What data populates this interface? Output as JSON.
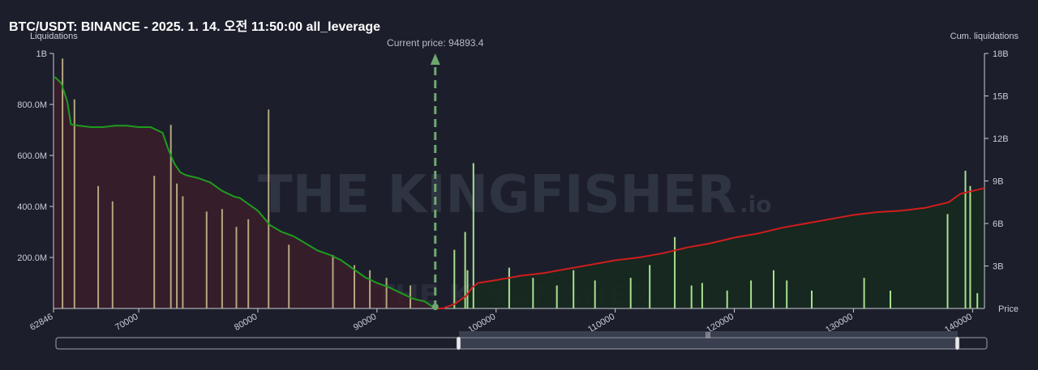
{
  "title": "BTC/USDT: BINANCE - 2025. 1. 14. 오전 11:50:00 all_leverage",
  "watermark": "THE KINGFISHER",
  "watermark_suffix": ".io",
  "colors": {
    "background": "#1c1f2b",
    "short_cum_line": "#d11d1d",
    "long_cum_line": "#1f9b1f",
    "long_fill": "#3a1d2a",
    "short_fill": "#16291f",
    "long_bars": "#b5a67f",
    "short_bars": "#a8e08e",
    "price_marker": "#6fa86f"
  },
  "chart_data": {
    "type": "bar",
    "x_range": [
      62846,
      141000
    ],
    "xticks": [
      62846,
      70000,
      80000,
      90000,
      100000,
      110000,
      120000,
      130000,
      140000
    ],
    "xtick_labels": [
      "62846",
      "70000",
      "80000",
      "90000",
      "100000",
      "110000",
      "120000",
      "130000",
      "140000"
    ],
    "xlabel": "Price",
    "ylabel_left": "Liquidations",
    "ylabel_right": "Cum. liquidations",
    "ylim_left": [
      0,
      1000000000
    ],
    "yticks_left": [
      200000000,
      400000000,
      600000000,
      800000000,
      1000000000
    ],
    "ytick_labels_left": [
      "200.0M",
      "400.0M",
      "600.0M",
      "800.0M",
      "1B"
    ],
    "ylim_right": [
      0,
      18000000000
    ],
    "yticks_right": [
      3000000000,
      6000000000,
      9000000000,
      12000000000,
      15000000000,
      18000000000
    ],
    "ytick_labels_right": [
      "3B",
      "6B",
      "9B",
      "12B",
      "15B",
      "18B"
    ],
    "current_price": 94893.4,
    "current_price_label": "Current price: 94893.4",
    "long_cum_series": {
      "x": [
        62846,
        63000,
        63500,
        64000,
        64300,
        65000,
        66000,
        67000,
        68000,
        69000,
        70000,
        71000,
        72000,
        72500,
        73000,
        73500,
        74000,
        75000,
        76000,
        77000,
        78000,
        78500,
        79000,
        80000,
        81000,
        82000,
        83000,
        84000,
        85000,
        86000,
        87000,
        88000,
        89000,
        90000,
        91000,
        92000,
        93000,
        94000,
        94893
      ],
      "y": [
        16300000000,
        16300000000,
        15900000000,
        14600000000,
        13000000000,
        12900000000,
        12800000000,
        12800000000,
        12900000000,
        12900000000,
        12800000000,
        12800000000,
        12400000000,
        11200000000,
        10200000000,
        9600000000,
        9400000000,
        9200000000,
        8900000000,
        8300000000,
        7900000000,
        7800000000,
        7500000000,
        6900000000,
        5900000000,
        5400000000,
        5100000000,
        4600000000,
        4100000000,
        3800000000,
        3400000000,
        2800000000,
        2200000000,
        1800000000,
        1500000000,
        1100000000,
        700000000,
        500000000,
        0
      ]
    },
    "short_cum_series": {
      "x": [
        94893,
        95500,
        96500,
        97000,
        97500,
        98000,
        98500,
        100000,
        102000,
        104000,
        106000,
        108000,
        110000,
        112000,
        114000,
        116000,
        118000,
        120000,
        122000,
        124000,
        126000,
        128000,
        130000,
        132000,
        134000,
        136000,
        137000,
        138000,
        139000,
        140000,
        141000
      ],
      "y": [
        0,
        0,
        300000000,
        600000000,
        900000000,
        1500000000,
        1800000000,
        2000000000,
        2300000000,
        2500000000,
        2800000000,
        3100000000,
        3400000000,
        3600000000,
        3900000000,
        4300000000,
        4600000000,
        5000000000,
        5300000000,
        5700000000,
        6000000000,
        6300000000,
        6600000000,
        6800000000,
        6900000000,
        7100000000,
        7300000000,
        7500000000,
        8100000000,
        8300000000,
        8500000000
      ]
    },
    "long_bars": {
      "x": [
        63600,
        64600,
        66600,
        67800,
        71300,
        72700,
        73200,
        73700,
        75700,
        77000,
        78200,
        79200,
        80900,
        82600,
        86300,
        88100,
        89400,
        90800,
        92800
      ],
      "values": [
        980000000,
        820000000,
        480000000,
        420000000,
        520000000,
        720000000,
        490000000,
        440000000,
        380000000,
        390000000,
        320000000,
        350000000,
        780000000,
        250000000,
        210000000,
        170000000,
        150000000,
        120000000,
        90000000
      ]
    },
    "short_bars": {
      "x": [
        96500,
        97400,
        97600,
        98100,
        101100,
        103100,
        105100,
        106500,
        108300,
        111300,
        112900,
        115000,
        116400,
        117300,
        119400,
        121400,
        123300,
        124400,
        126500,
        130900,
        133100,
        137900,
        139400,
        139800,
        140400
      ],
      "values": [
        230000000,
        300000000,
        150000000,
        570000000,
        160000000,
        120000000,
        90000000,
        150000000,
        110000000,
        120000000,
        170000000,
        280000000,
        90000000,
        100000000,
        70000000,
        110000000,
        150000000,
        110000000,
        70000000,
        120000000,
        70000000,
        370000000,
        540000000,
        480000000,
        60000000
      ]
    }
  }
}
